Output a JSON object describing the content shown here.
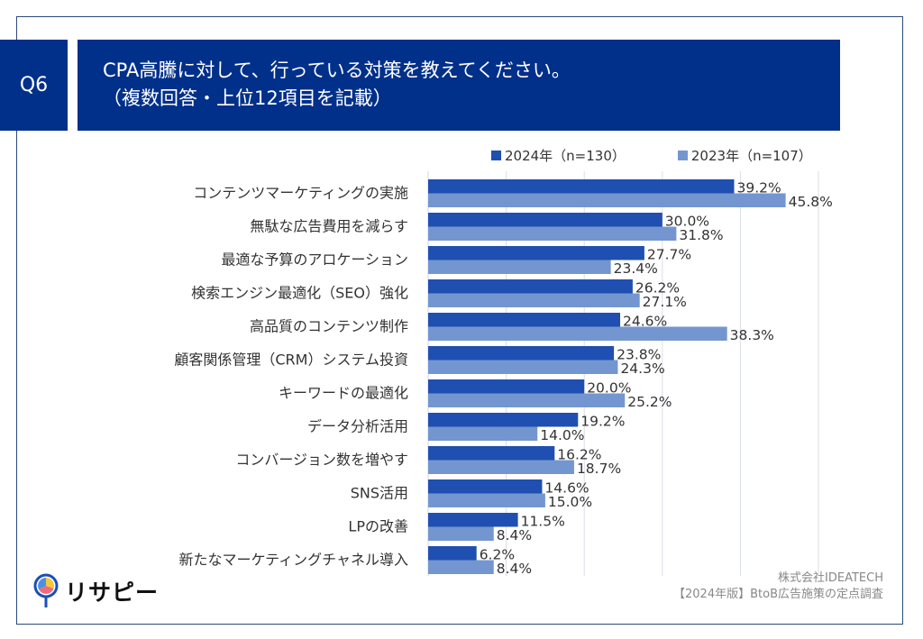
{
  "header": {
    "question_badge": "Q6",
    "title_line1": "CPA高騰に対して、行っている対策を教えてください。",
    "title_line2": "（複数回答・上位12項目を記載）"
  },
  "colors": {
    "navy": "#00308a",
    "series_2024": "#1f4fb0",
    "series_2023": "#7496d0",
    "grid": "#d9dde6"
  },
  "chart_data": {
    "type": "bar",
    "orientation": "horizontal",
    "title": "CPA高騰に対して、行っている対策を教えてください。（複数回答・上位12項目を記載）",
    "xlabel": "",
    "ylabel": "",
    "xlim": [
      0,
      50
    ],
    "xticks": [
      0,
      10,
      20,
      30,
      40,
      50
    ],
    "grid": true,
    "legend_position": "top-right",
    "categories": [
      "コンテンツマーケティングの実施",
      "無駄な広告費用を減らす",
      "最適な予算のアロケーション",
      "検索エンジン最適化（SEO）強化",
      "高品質のコンテンツ制作",
      "顧客関係管理（CRM）システム投資",
      "キーワードの最適化",
      "データ分析活用",
      "コンバージョン数を増やす",
      "SNS活用",
      "LPの改善",
      "新たなマーケティングチャネル導入"
    ],
    "series": [
      {
        "name": "2024年（n=130）",
        "color": "#1f4fb0",
        "values": [
          39.2,
          30.0,
          27.7,
          26.2,
          24.6,
          23.8,
          20.0,
          19.2,
          16.2,
          14.6,
          11.5,
          6.2
        ]
      },
      {
        "name": "2023年（n=107）",
        "color": "#7496d0",
        "values": [
          45.8,
          31.8,
          23.4,
          27.1,
          38.3,
          24.3,
          25.2,
          14.0,
          18.7,
          15.0,
          8.4,
          8.4
        ]
      }
    ],
    "value_format": "percent_1dp"
  },
  "legend": {
    "items": [
      {
        "label": "2024年（n=130）",
        "color": "#1f4fb0"
      },
      {
        "label": "2023年（n=107）",
        "color": "#7496d0"
      }
    ]
  },
  "footer": {
    "company": "株式会社IDEATECH",
    "survey": "【2024年版】BtoB広告施策の定点調査"
  },
  "logo": {
    "text": "リサピー",
    "icon": "map-pin-pie-icon"
  }
}
